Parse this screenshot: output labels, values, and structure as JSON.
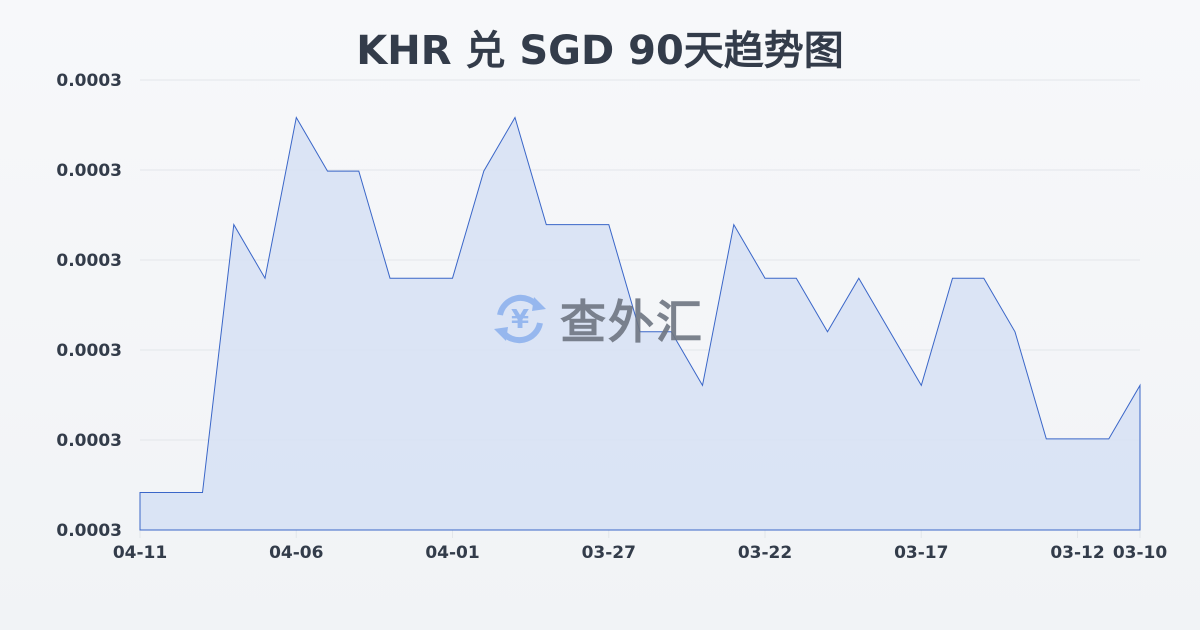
{
  "chart_data": {
    "type": "area",
    "title": "KHR 兑 SGD 90天趋势图",
    "xlabel": "",
    "ylabel": "",
    "x": [
      "04-11",
      "04-10",
      "04-09",
      "04-08",
      "04-07",
      "04-06",
      "04-05",
      "04-04",
      "04-03",
      "04-02",
      "04-01",
      "03-31",
      "03-30",
      "03-29",
      "03-28",
      "03-27",
      "03-26",
      "03-25",
      "03-24",
      "03-23",
      "03-22",
      "03-21",
      "03-20",
      "03-19",
      "03-18",
      "03-17",
      "03-16",
      "03-15",
      "03-14",
      "03-13",
      "03-12",
      "03-11",
      "03-10"
    ],
    "values": [
      0.000318,
      0.000318,
      0.000318,
      0.000323,
      0.000322,
      0.000325,
      0.000324,
      0.000324,
      0.000322,
      0.000322,
      0.000322,
      0.000324,
      0.000325,
      0.000323,
      0.000323,
      0.000323,
      0.000321,
      0.000321,
      0.00032,
      0.000323,
      0.000322,
      0.000322,
      0.000321,
      0.000322,
      0.000321,
      0.00032,
      0.000322,
      0.000322,
      0.000321,
      0.000319,
      0.000319,
      0.000319,
      0.00032
    ],
    "x_tick_labels": [
      "04-11",
      "04-06",
      "04-01",
      "03-27",
      "03-22",
      "03-17",
      "03-12",
      "03-10"
    ],
    "y_tick_labels": [
      "0.0003",
      "0.0003",
      "0.0003",
      "0.0003",
      "0.0003",
      "0.0003"
    ],
    "ylim": [
      0.0003173,
      0.0003257
    ],
    "grid": true,
    "colors": {
      "line": "#3a66c8",
      "fill": "#d6e0f5",
      "grid": "#e3e6ea",
      "text": "#333c4a"
    }
  },
  "watermark": {
    "text": "查外汇",
    "icon": "yen-exchange-icon"
  }
}
